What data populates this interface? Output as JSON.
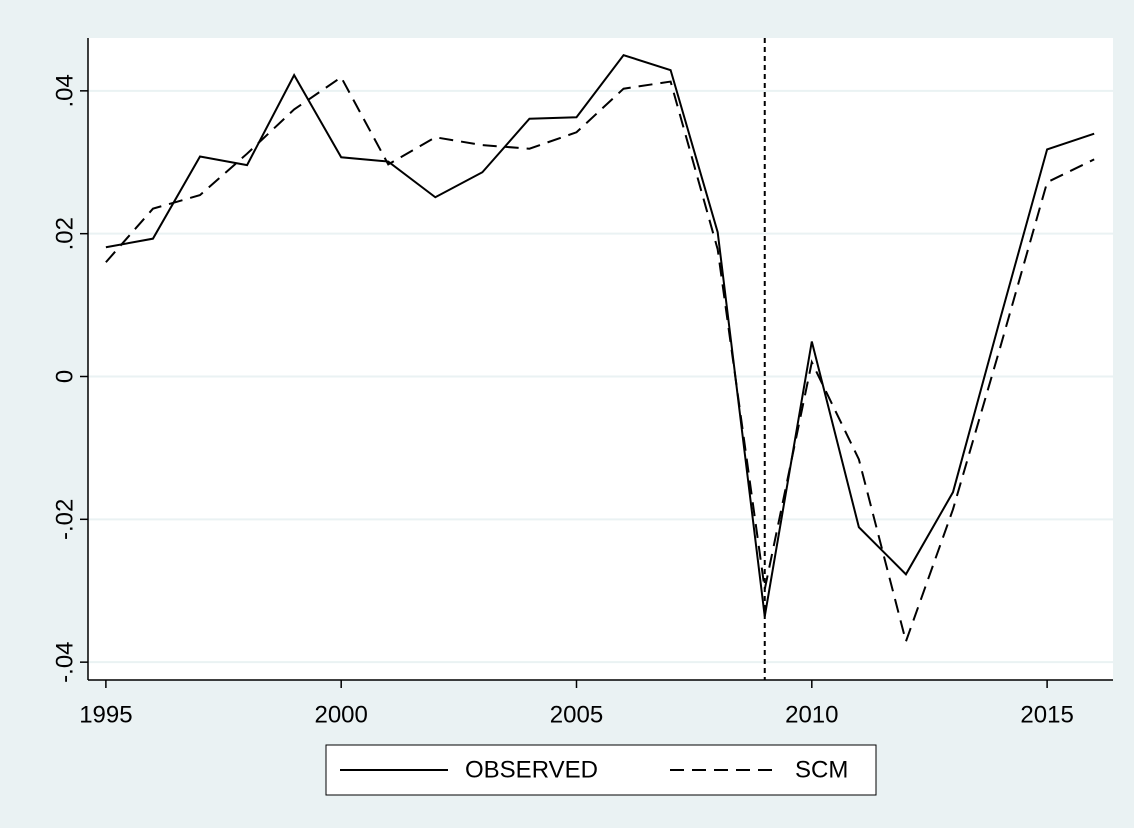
{
  "chart_data": {
    "type": "line",
    "x": [
      1995,
      1996,
      1997,
      1998,
      1999,
      2000,
      2001,
      2002,
      2003,
      2004,
      2005,
      2006,
      2007,
      2008,
      2009,
      2010,
      2011,
      2012,
      2013,
      2014,
      2015,
      2016
    ],
    "series": [
      {
        "name": "OBSERVED",
        "color": "#000000",
        "dash": "solid",
        "values": [
          0.0181,
          0.0193,
          0.0308,
          0.0296,
          0.0422,
          0.0307,
          0.0301,
          0.0251,
          0.0286,
          0.0361,
          0.0363,
          0.045,
          0.0429,
          0.0202,
          -0.0336,
          0.0049,
          -0.0211,
          -0.0277,
          -0.0162,
          0.008,
          0.0318,
          0.034
        ]
      },
      {
        "name": "SCM",
        "color": "#000000",
        "dash": "dashed",
        "values": [
          0.016,
          0.0235,
          0.0254,
          0.0312,
          0.0374,
          0.0419,
          0.0297,
          0.0335,
          0.0324,
          0.0319,
          0.0342,
          0.0403,
          0.0413,
          0.0178,
          -0.0298,
          0.002,
          -0.0116,
          -0.0371,
          -0.0186,
          0.004,
          0.0272,
          0.0304
        ]
      }
    ],
    "xlim": [
      1994.62,
      2016.4
    ],
    "xticks": [
      1995,
      2000,
      2005,
      2010,
      2015
    ],
    "ylim": [
      -0.0425,
      0.0474
    ],
    "yticks": [
      {
        "value": -0.04,
        "label": "-.04"
      },
      {
        "value": -0.02,
        "label": "-.02"
      },
      0,
      {
        "value": 0.02,
        "label": ".02"
      },
      {
        "value": 0.04,
        "label": ".04"
      }
    ],
    "xline": 2009,
    "grid": true,
    "legend": "bottom"
  }
}
